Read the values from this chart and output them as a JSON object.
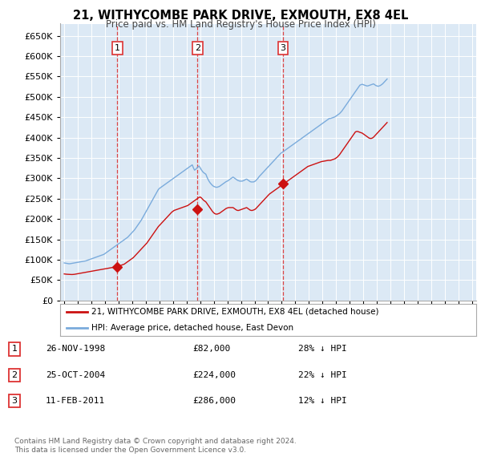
{
  "title": "21, WITHYCOMBE PARK DRIVE, EXMOUTH, EX8 4EL",
  "subtitle": "Price paid vs. HM Land Registry's House Price Index (HPI)",
  "footer1": "Contains HM Land Registry data © Crown copyright and database right 2024.",
  "footer2": "This data is licensed under the Open Government Licence v3.0.",
  "legend_red": "21, WITHYCOMBE PARK DRIVE, EXMOUTH, EX8 4EL (detached house)",
  "legend_blue": "HPI: Average price, detached house, East Devon",
  "sale_points": [
    {
      "label": "1",
      "date": "26-NOV-1998",
      "price": 82000,
      "note": "28% ↓ HPI",
      "x_year": 1998.9
    },
    {
      "label": "2",
      "date": "25-OCT-2004",
      "price": 224000,
      "note": "22% ↓ HPI",
      "x_year": 2004.8
    },
    {
      "label": "3",
      "date": "11-FEB-2011",
      "price": 286000,
      "note": "12% ↓ HPI",
      "x_year": 2011.1
    }
  ],
  "hpi_color": "#7aabdc",
  "price_color": "#cc1111",
  "sale_marker_color": "#cc1111",
  "bg_color": "#dce9f5",
  "grid_color": "#ffffff",
  "vline_color": "#dd3333",
  "ylim": [
    0,
    680000
  ],
  "xlim": [
    1994.7,
    2025.3
  ],
  "hpi_data_monthly": {
    "start_year": 1995.0,
    "values": [
      92000,
      91500,
      91000,
      90500,
      90000,
      90000,
      90500,
      91000,
      91500,
      92000,
      92500,
      93000,
      93500,
      94000,
      94500,
      95000,
      95500,
      96000,
      96500,
      97000,
      98000,
      99000,
      100000,
      101000,
      102000,
      103000,
      104000,
      105000,
      106000,
      107000,
      108000,
      109000,
      110000,
      111000,
      112000,
      113000,
      115000,
      117000,
      119000,
      121000,
      123000,
      125000,
      127000,
      129000,
      131000,
      133000,
      135000,
      137000,
      139000,
      141000,
      143000,
      145000,
      147000,
      149000,
      151000,
      153000,
      155000,
      158000,
      161000,
      164000,
      167000,
      170000,
      173000,
      177000,
      181000,
      185000,
      189000,
      193000,
      197000,
      202000,
      207000,
      212000,
      217000,
      222000,
      227000,
      232000,
      237000,
      242000,
      247000,
      252000,
      257000,
      262000,
      267000,
      272000,
      275000,
      277000,
      279000,
      281000,
      283000,
      285000,
      287000,
      289000,
      291000,
      293000,
      295000,
      297000,
      299000,
      301000,
      303000,
      305000,
      307000,
      309000,
      311000,
      313000,
      315000,
      317000,
      319000,
      321000,
      323000,
      325000,
      327000,
      329000,
      331000,
      333000,
      326000,
      320000,
      322000,
      325000,
      328000,
      330000,
      326000,
      321000,
      317000,
      314000,
      312000,
      310000,
      303000,
      297000,
      292000,
      288000,
      285000,
      282000,
      280000,
      279000,
      278000,
      278000,
      279000,
      280000,
      282000,
      284000,
      286000,
      288000,
      290000,
      292000,
      293000,
      295000,
      297000,
      299000,
      301000,
      303000,
      301000,
      299000,
      297000,
      295000,
      294000,
      293000,
      293000,
      293000,
      294000,
      295000,
      297000,
      298000,
      296000,
      294000,
      292000,
      291000,
      291000,
      291000,
      292000,
      294000,
      297000,
      300000,
      304000,
      307000,
      310000,
      313000,
      316000,
      319000,
      322000,
      325000,
      328000,
      331000,
      334000,
      337000,
      340000,
      343000,
      346000,
      349000,
      352000,
      355000,
      358000,
      361000,
      363000,
      365000,
      367000,
      369000,
      371000,
      373000,
      375000,
      377000,
      379000,
      381000,
      383000,
      385000,
      387000,
      389000,
      391000,
      393000,
      395000,
      397000,
      399000,
      401000,
      403000,
      405000,
      407000,
      409000,
      411000,
      413000,
      415000,
      417000,
      419000,
      421000,
      423000,
      425000,
      427000,
      429000,
      431000,
      433000,
      435000,
      437000,
      439000,
      441000,
      443000,
      445000,
      447000,
      447000,
      448000,
      449000,
      450000,
      451000,
      453000,
      455000,
      457000,
      459000,
      462000,
      465000,
      469000,
      473000,
      477000,
      481000,
      485000,
      489000,
      493000,
      497000,
      501000,
      505000,
      509000,
      513000,
      517000,
      521000,
      525000,
      529000,
      530000,
      531000,
      530000,
      529000,
      528000,
      527000,
      527000,
      528000,
      529000,
      530000,
      531000,
      532000,
      530000,
      528000,
      527000,
      526000,
      527000,
      528000,
      530000,
      532000,
      535000,
      538000,
      541000,
      544000
    ]
  },
  "price_paid_data_monthly": {
    "start_year": 1995.0,
    "values": [
      65000,
      64500,
      64200,
      64000,
      63800,
      63700,
      63600,
      63500,
      63700,
      64000,
      64500,
      65000,
      65500,
      66000,
      66500,
      67000,
      67500,
      68000,
      68500,
      69000,
      69500,
      70000,
      70500,
      71000,
      71500,
      72000,
      72500,
      73000,
      73500,
      74000,
      74500,
      75000,
      75500,
      76000,
      76500,
      77000,
      77500,
      78000,
      78500,
      79000,
      79500,
      80000,
      80500,
      81000,
      81500,
      82000,
      82500,
      83000,
      84000,
      85000,
      86000,
      87000,
      88000,
      89000,
      91000,
      93000,
      95000,
      97000,
      99000,
      101000,
      103000,
      105000,
      108000,
      111000,
      114000,
      117000,
      120000,
      123000,
      126000,
      129000,
      132000,
      135000,
      138000,
      141000,
      145000,
      149000,
      153000,
      157000,
      161000,
      165000,
      169000,
      173000,
      177000,
      181000,
      184000,
      187000,
      190000,
      193000,
      196000,
      199000,
      202000,
      205000,
      208000,
      211000,
      214000,
      217000,
      219000,
      221000,
      222000,
      223000,
      224000,
      225000,
      226000,
      227000,
      228000,
      229000,
      230000,
      231000,
      232000,
      233000,
      235000,
      237000,
      239000,
      241000,
      243000,
      245000,
      247000,
      249000,
      251000,
      253000,
      254000,
      252000,
      249000,
      246000,
      244000,
      242000,
      238000,
      234000,
      230000,
      226000,
      222000,
      218000,
      215000,
      213000,
      212000,
      212000,
      213000,
      214000,
      216000,
      218000,
      220000,
      222000,
      224000,
      226000,
      227000,
      228000,
      228000,
      228000,
      228000,
      228000,
      226000,
      224000,
      222000,
      221000,
      221000,
      222000,
      223000,
      224000,
      225000,
      226000,
      227000,
      228000,
      226000,
      224000,
      222000,
      221000,
      221000,
      222000,
      223000,
      225000,
      228000,
      231000,
      234000,
      237000,
      240000,
      243000,
      246000,
      249000,
      252000,
      255000,
      258000,
      261000,
      263000,
      265000,
      267000,
      269000,
      271000,
      273000,
      275000,
      277000,
      279000,
      281000,
      283000,
      285000,
      287000,
      289000,
      291000,
      293000,
      295000,
      297000,
      299000,
      301000,
      303000,
      305000,
      307000,
      309000,
      311000,
      313000,
      315000,
      317000,
      319000,
      321000,
      323000,
      325000,
      327000,
      329000,
      330000,
      331000,
      332000,
      333000,
      334000,
      335000,
      336000,
      337000,
      338000,
      339000,
      340000,
      341000,
      341500,
      342000,
      342500,
      343000,
      343500,
      344000,
      344000,
      344000,
      345000,
      346000,
      347000,
      348000,
      350000,
      352000,
      355000,
      358000,
      362000,
      366000,
      370000,
      374000,
      378000,
      382000,
      386000,
      390000,
      394000,
      398000,
      402000,
      406000,
      410000,
      414000,
      415000,
      415000,
      414000,
      413000,
      412000,
      411000,
      409000,
      407000,
      405000,
      403000,
      401000,
      399000,
      398000,
      398000,
      399000,
      401000,
      404000,
      407000,
      410000,
      413000,
      416000,
      419000,
      422000,
      425000,
      428000,
      431000,
      434000,
      437000
    ]
  }
}
